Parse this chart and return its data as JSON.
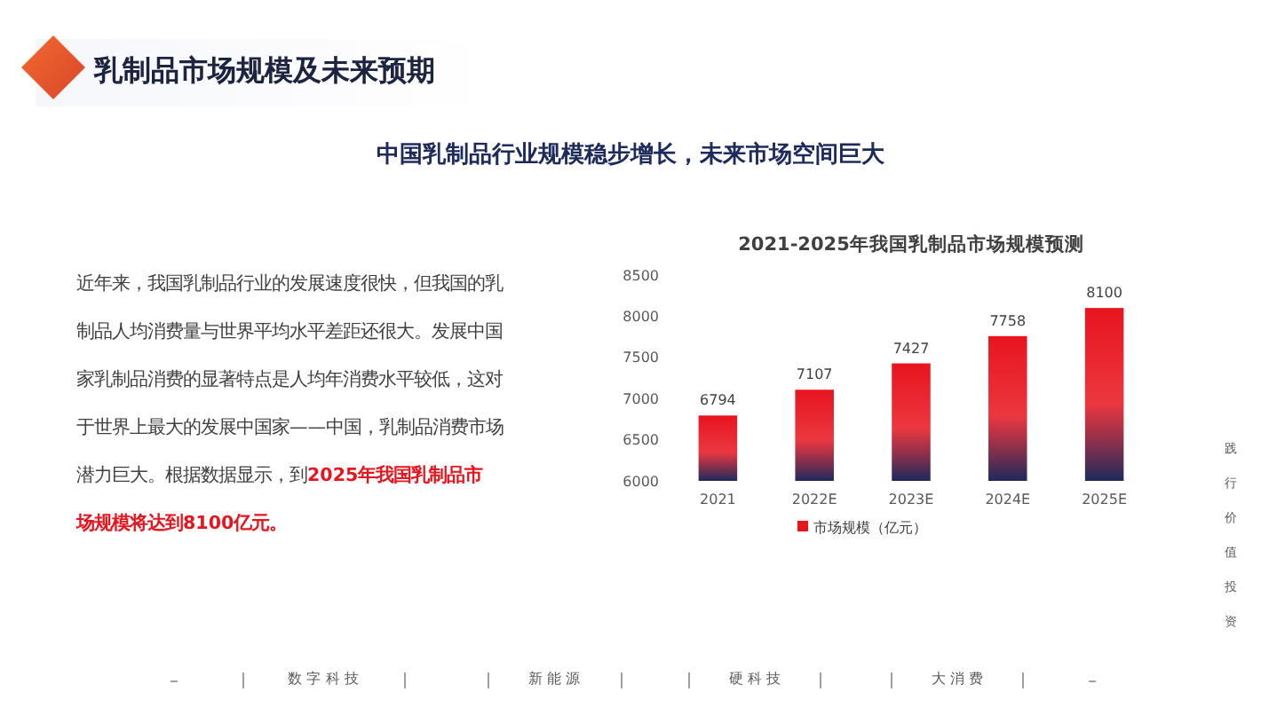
{
  "chart_data": {
    "type": "bar",
    "title": "2021-2025年我国乳制品市场规模预测",
    "categories": [
      "2021",
      "2022E",
      "2023E",
      "2024E",
      "2025E"
    ],
    "series": [
      {
        "name": "市场规模（亿元）",
        "color": "#e8141e",
        "values": [
          6794,
          7107,
          7427,
          7758,
          8100
        ]
      }
    ],
    "ylim": [
      6000,
      8500
    ],
    "yticks": [
      6000,
      6500,
      7000,
      7500,
      8000,
      8500
    ],
    "data_labels": true,
    "legend": "bottom",
    "grid": false,
    "annotations": [
      "乳制品市场规模及未来预期",
      "中国乳制品行业规模稳步增长，未来市场空间巨大",
      "近年来，我国乳制品行业的发展速度很快，但我国的乳制品人均消费量与世界平均水平差距还很大。发展中国家乳制品消费的显著特点是人均年消费水平较低，这对于世界上最大的发展中国家——中国，乳制品消费市场潜力巨大。根据数据显示，到",
      "2025年我国乳制品市场规模将达到8100亿元。",
      "数 字 科 技",
      "新 能 源",
      "硬 科 技",
      "大 消 费",
      "践行价值投资"
    ]
  }
}
